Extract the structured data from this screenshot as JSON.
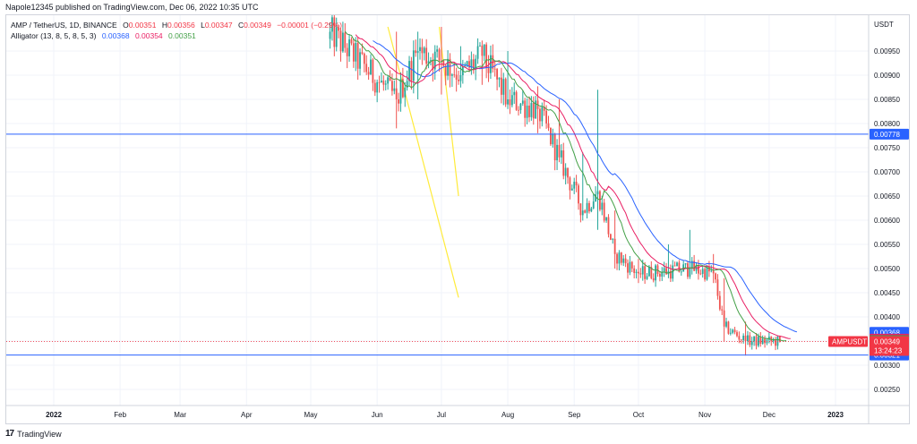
{
  "header": {
    "publish_line": "Napole12345 published on TradingView.com, Dec 06, 2022 10:35 UTC"
  },
  "legend": {
    "symbol": "AMP / TetherUS, 1D, BINANCE",
    "o_label": "O",
    "o_value": "0.00351",
    "h_label": "H",
    "h_value": "0.00356",
    "l_label": "L",
    "l_value": "0.00347",
    "c_label": "C",
    "c_value": "0.00349",
    "change": "−0.00001 (−0.29%)",
    "indicator": "Alligator (13, 8, 5, 8, 5, 3)",
    "jaw_value": "0.00368",
    "teeth_value": "0.00354",
    "lips_value": "0.00351"
  },
  "footer": {
    "brand": "TradingView",
    "logo_text": "17"
  },
  "colors": {
    "up": "#26a69a",
    "down": "#ef5350",
    "jaw": "#2962ff",
    "teeth": "#e91e63",
    "lips": "#43a047",
    "hline": "#2962ff",
    "trendline": "#ffeb3b",
    "price": "#f23645"
  },
  "chart_data": {
    "type": "candlestick",
    "currency": "USDT",
    "y_ticks": [
      "0.00950",
      "0.00900",
      "0.00850",
      "0.00800",
      "0.00750",
      "0.00700",
      "0.00650",
      "0.00600",
      "0.00550",
      "0.00500",
      "0.00450",
      "0.00400",
      "0.00350",
      "0.00300",
      "0.00250"
    ],
    "x_ticks": [
      "2022",
      "Feb",
      "Mar",
      "Apr",
      "May",
      "Jun",
      "Jul",
      "Aug",
      "Sep",
      "Oct",
      "Nov",
      "Dec",
      "2023"
    ],
    "horizontal_lines": [
      {
        "label": "0.00778",
        "value": 0.00778
      },
      {
        "label": "0.00321",
        "value": 0.00321
      }
    ],
    "price_badges": [
      {
        "label": "0.00368",
        "value": 0.00368,
        "color": "#2962ff"
      },
      {
        "label": "0.00354",
        "value": 0.00354,
        "color": "#e91e63"
      },
      {
        "label": "0.00351",
        "value": 0.00351,
        "color": "#43a047"
      }
    ],
    "last_price": {
      "symbol": "AMPUSDT",
      "label": "0.00349",
      "value": 0.00349,
      "countdown": "13:24:23"
    },
    "trend_lines": [
      {
        "from": [
          "2022-06-06",
          0.01
        ],
        "to": [
          "2022-07-09",
          0.0044
        ]
      },
      {
        "from": [
          "2022-06-30",
          0.01
        ],
        "to": [
          "2022-07-09",
          0.0065
        ]
      }
    ],
    "key_points": [
      {
        "date": "2022-05-10",
        "open": 0.00975,
        "high": 0.01,
        "low": 0.00955,
        "close": 0.0099
      },
      {
        "date": "2022-06-10",
        "open": 0.0095,
        "high": 0.0099,
        "low": 0.0079,
        "close": 0.0085
      },
      {
        "date": "2022-06-20",
        "open": 0.0088,
        "high": 0.0099,
        "low": 0.0085,
        "close": 0.0095
      },
      {
        "date": "2022-07-01",
        "open": 0.009,
        "high": 0.01,
        "low": 0.0086,
        "close": 0.0093
      },
      {
        "date": "2022-07-10",
        "open": 0.0093,
        "high": 0.0096,
        "low": 0.0088,
        "close": 0.009
      },
      {
        "date": "2022-07-20",
        "open": 0.0092,
        "high": 0.0096,
        "low": 0.0088,
        "close": 0.0094
      },
      {
        "date": "2022-08-01",
        "open": 0.009,
        "high": 0.0095,
        "low": 0.0083,
        "close": 0.0085
      },
      {
        "date": "2022-08-15",
        "open": 0.0085,
        "high": 0.0087,
        "low": 0.0078,
        "close": 0.0083
      },
      {
        "date": "2022-08-25",
        "open": 0.0082,
        "high": 0.0085,
        "low": 0.0072,
        "close": 0.0073
      },
      {
        "date": "2022-09-05",
        "open": 0.0072,
        "high": 0.0074,
        "low": 0.006,
        "close": 0.0062
      },
      {
        "date": "2022-09-12",
        "open": 0.0062,
        "high": 0.0087,
        "low": 0.0058,
        "close": 0.0066
      },
      {
        "date": "2022-09-20",
        "open": 0.006,
        "high": 0.0062,
        "low": 0.005,
        "close": 0.0053
      },
      {
        "date": "2022-10-01",
        "open": 0.0049,
        "high": 0.0052,
        "low": 0.0047,
        "close": 0.0049
      },
      {
        "date": "2022-10-15",
        "open": 0.0049,
        "high": 0.0055,
        "low": 0.0048,
        "close": 0.00495
      },
      {
        "date": "2022-10-25",
        "open": 0.0049,
        "high": 0.0058,
        "low": 0.0048,
        "close": 0.005
      },
      {
        "date": "2022-11-05",
        "open": 0.005,
        "high": 0.0053,
        "low": 0.0047,
        "close": 0.0049
      },
      {
        "date": "2022-11-10",
        "open": 0.0047,
        "high": 0.0048,
        "low": 0.0035,
        "close": 0.0038
      },
      {
        "date": "2022-11-20",
        "open": 0.0036,
        "high": 0.0039,
        "low": 0.0032,
        "close": 0.0035
      },
      {
        "date": "2022-12-06",
        "open": 0.00351,
        "high": 0.00356,
        "low": 0.00347,
        "close": 0.00349
      }
    ],
    "alligator_at_last": {
      "jaw": 0.00368,
      "teeth": 0.00354,
      "lips": 0.00351
    }
  }
}
